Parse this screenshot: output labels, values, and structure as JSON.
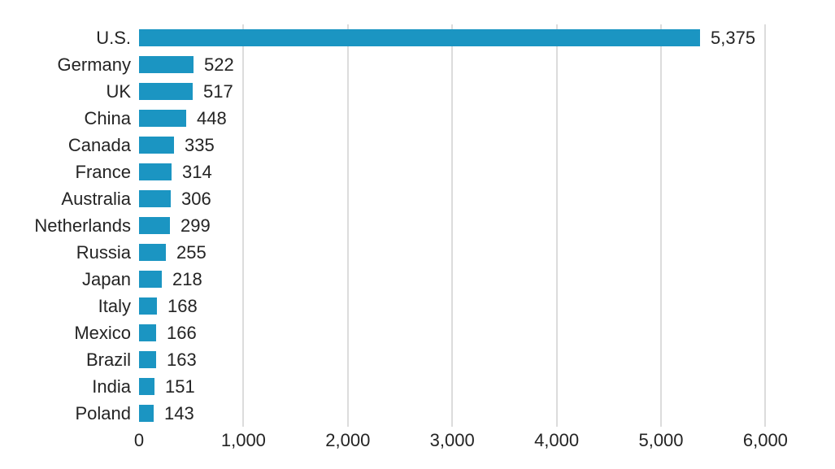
{
  "chart_data": {
    "type": "bar",
    "orientation": "horizontal",
    "title": "",
    "xlabel": "",
    "ylabel": "",
    "categories": [
      "U.S.",
      "Germany",
      "UK",
      "China",
      "Canada",
      "France",
      "Australia",
      "Netherlands",
      "Russia",
      "Japan",
      "Italy",
      "Mexico",
      "Brazil",
      "India",
      "Poland"
    ],
    "values": [
      5375,
      522,
      517,
      448,
      335,
      314,
      306,
      299,
      255,
      218,
      168,
      166,
      163,
      151,
      143
    ],
    "value_labels": [
      "5,375",
      "522",
      "517",
      "448",
      "335",
      "314",
      "306",
      "299",
      "255",
      "218",
      "168",
      "166",
      "163",
      "151",
      "143"
    ],
    "xlim": [
      0,
      6000
    ],
    "x_ticks": [
      0,
      1000,
      2000,
      3000,
      4000,
      5000,
      6000
    ],
    "x_tick_labels": [
      "0",
      "1,000",
      "2,000",
      "3,000",
      "4,000",
      "5,000",
      "6,000"
    ],
    "grid": "vertical-gridlines-on",
    "legend": "none",
    "colors": {
      "bar": "#1b95c2",
      "text": "#242424",
      "gridline": "#dcdcdc",
      "background": "#ffffff"
    }
  }
}
